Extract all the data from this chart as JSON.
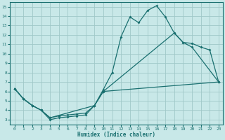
{
  "background_color": "#c8e8e8",
  "grid_color": "#a0c8c8",
  "line_color": "#1a7070",
  "xlabel": "Humidex (Indice chaleur)",
  "xlim": [
    -0.5,
    23.5
  ],
  "ylim": [
    2.5,
    15.5
  ],
  "xticks": [
    0,
    1,
    2,
    3,
    4,
    5,
    6,
    7,
    8,
    9,
    10,
    11,
    12,
    13,
    14,
    15,
    16,
    17,
    18,
    19,
    20,
    21,
    22,
    23
  ],
  "yticks": [
    3,
    4,
    5,
    6,
    7,
    8,
    9,
    10,
    11,
    12,
    13,
    14,
    15
  ],
  "line1_x": [
    0,
    1,
    2,
    3,
    4,
    5,
    6,
    7,
    8,
    9,
    10,
    11,
    12,
    13,
    14,
    15,
    16,
    17,
    18,
    19,
    20,
    23
  ],
  "line1_y": [
    6.3,
    5.2,
    4.5,
    4.0,
    3.0,
    3.2,
    3.3,
    3.4,
    3.5,
    4.5,
    6.2,
    8.0,
    11.8,
    13.9,
    13.3,
    14.6,
    15.1,
    13.9,
    12.2,
    11.2,
    10.7,
    7.0
  ],
  "line2_x": [
    0,
    1,
    2,
    3,
    4,
    9,
    10,
    18,
    19,
    20,
    21,
    22,
    23
  ],
  "line2_y": [
    6.3,
    5.2,
    4.5,
    4.0,
    3.2,
    4.5,
    6.0,
    12.2,
    11.2,
    11.1,
    10.7,
    10.4,
    7.0
  ],
  "line3_x": [
    0,
    1,
    2,
    3,
    4,
    5,
    6,
    7,
    8,
    9,
    10,
    23
  ],
  "line3_y": [
    6.3,
    5.2,
    4.5,
    4.0,
    3.2,
    3.4,
    3.5,
    3.6,
    3.7,
    4.5,
    6.0,
    7.0
  ]
}
